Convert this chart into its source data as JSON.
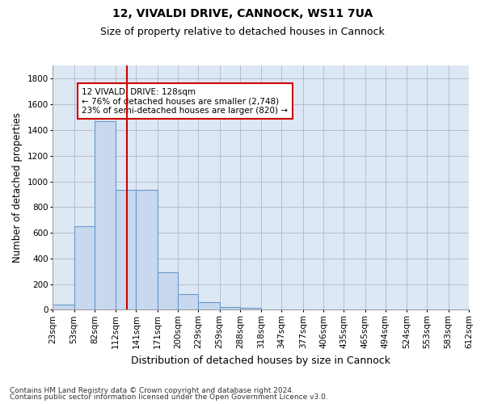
{
  "title1": "12, VIVALDI DRIVE, CANNOCK, WS11 7UA",
  "title2": "Size of property relative to detached houses in Cannock",
  "xlabel": "Distribution of detached houses by size in Cannock",
  "ylabel": "Number of detached properties",
  "footnote1": "Contains HM Land Registry data © Crown copyright and database right 2024.",
  "footnote2": "Contains public sector information licensed under the Open Government Licence v3.0.",
  "annotation_line1": "12 VIVALDI DRIVE: 128sqm",
  "annotation_line2": "← 76% of detached houses are smaller (2,748)",
  "annotation_line3": "23% of semi-detached houses are larger (820) →",
  "bar_edges": [
    23,
    53,
    82,
    112,
    141,
    171,
    200,
    229,
    259,
    288,
    318,
    347,
    377,
    406,
    435,
    465,
    494,
    524,
    553,
    583,
    612
  ],
  "bar_heights": [
    40,
    650,
    1470,
    935,
    935,
    290,
    125,
    60,
    22,
    15,
    5,
    3,
    2,
    0,
    0,
    0,
    0,
    0,
    0,
    0
  ],
  "bar_color": "#c8d8ee",
  "bar_edgecolor": "#6699cc",
  "vline_x": 128,
  "vline_color": "#cc0000",
  "ylim": [
    0,
    1900
  ],
  "yticks": [
    0,
    200,
    400,
    600,
    800,
    1000,
    1200,
    1400,
    1600,
    1800
  ],
  "grid_color": "#bbbbcc",
  "bg_color": "#dde8f5",
  "annotation_box_color": "#cc0000",
  "title1_fontsize": 10,
  "title2_fontsize": 9,
  "annotation_fontsize": 7.5,
  "tick_fontsize": 7.5,
  "ylabel_fontsize": 8.5,
  "xlabel_fontsize": 9
}
